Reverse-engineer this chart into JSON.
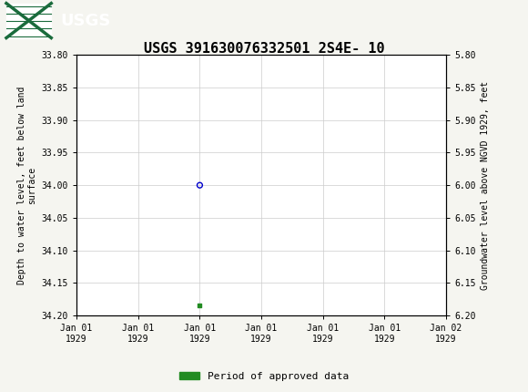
{
  "title": "USGS 391630076332501 2S4E- 10",
  "title_fontsize": 11,
  "header_bg_color": "#1a6b3c",
  "ylabel_left": "Depth to water level, feet below land\nsurface",
  "ylabel_right": "Groundwater level above NGVD 1929, feet",
  "ylim_left": [
    33.8,
    34.2
  ],
  "ylim_right": [
    5.8,
    6.2
  ],
  "yticks_left": [
    33.8,
    33.85,
    33.9,
    33.95,
    34.0,
    34.05,
    34.1,
    34.15,
    34.2
  ],
  "yticks_right": [
    5.8,
    5.85,
    5.9,
    5.95,
    6.0,
    6.05,
    6.1,
    6.15,
    6.2
  ],
  "xtick_labels": [
    "Jan 01\n1929",
    "Jan 01\n1929",
    "Jan 01\n1929",
    "Jan 01\n1929",
    "Jan 01\n1929",
    "Jan 01\n1929",
    "Jan 02\n1929"
  ],
  "circle_point_x": 8,
  "circle_point_y": 34.0,
  "circle_color": "#0000cc",
  "square_point_x": 8,
  "square_point_y": 34.185,
  "square_color": "#228b22",
  "legend_label": "Period of approved data",
  "legend_color": "#228b22",
  "bg_color": "#f5f5f0",
  "plot_bg_color": "#ffffff",
  "grid_color": "#cccccc",
  "xlim": [
    0,
    24
  ],
  "xtick_positions": [
    0,
    4,
    8,
    12,
    16,
    20,
    24
  ]
}
